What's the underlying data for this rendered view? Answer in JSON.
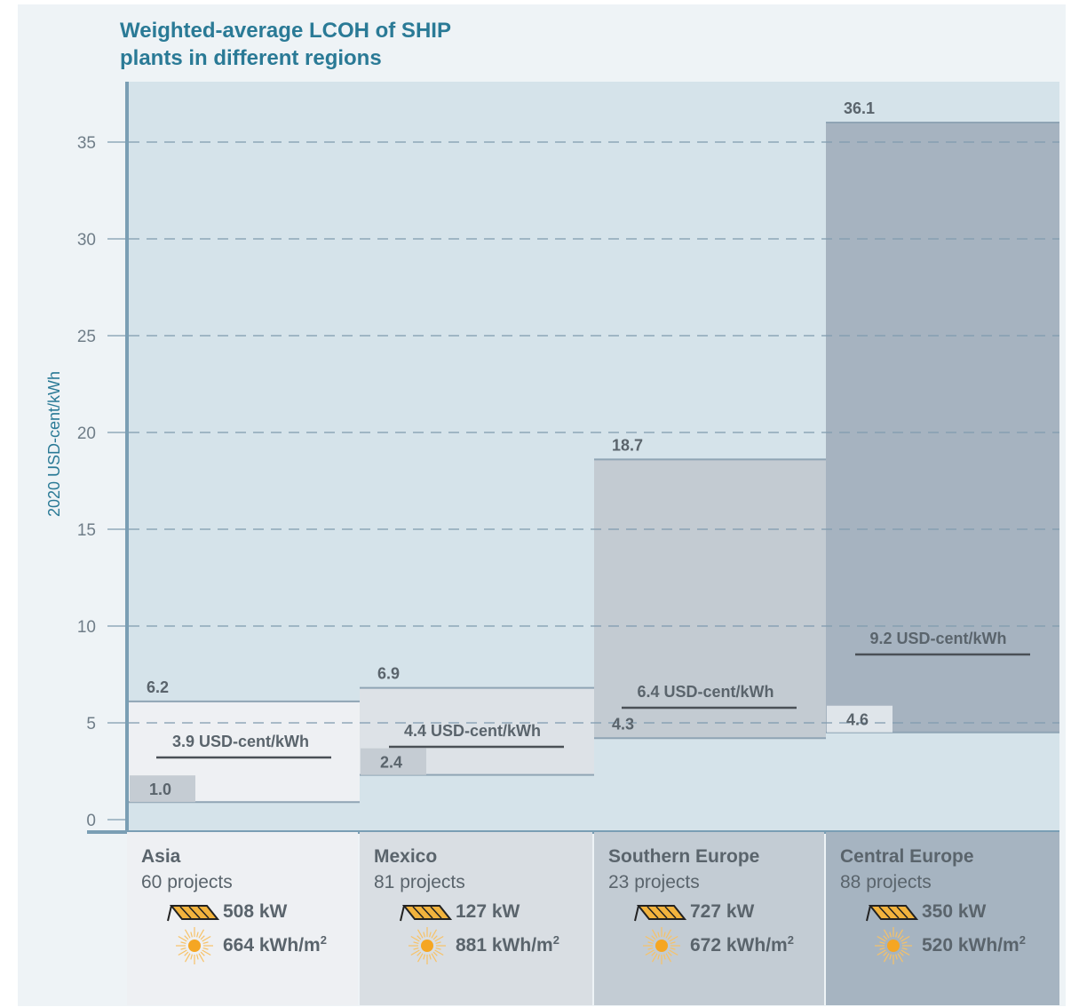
{
  "title_line1": "Weighted-average LCOH of SHIP",
  "title_line2": "plants in different regions",
  "colors": {
    "background": "#eef3f6",
    "plot_area": "#d5e3ea",
    "axis": "#7a9eb4",
    "title": "#2a7a96",
    "label": "#5a646c",
    "sun": "#f5a623",
    "collector": "#f2b33d"
  },
  "chart_data": {
    "type": "bar",
    "subtype": "range-bar (min to max, with weighted average line)",
    "ylabel": "2020 USD-cent/kWh",
    "ylim": [
      0,
      37
    ],
    "yticks": [
      0,
      5,
      10,
      15,
      20,
      25,
      30,
      35
    ],
    "grid": true,
    "categories": [
      "Asia",
      "Mexico",
      "Southern Europe",
      "Central Europe"
    ],
    "series": [
      {
        "values": [
          1.0,
          2.4,
          4.3,
          4.6
        ]
      },
      {
        "values": [
          6.2,
          6.9,
          18.7,
          36.1
        ]
      },
      {
        "values": [
          3.9,
          4.4,
          6.4,
          9.2
        ]
      }
    ],
    "min_labels": [
      "1.0",
      "2.4",
      "4.3",
      "4.6"
    ],
    "max_labels": [
      "6.2",
      "6.9",
      "18.7",
      "36.1"
    ],
    "avg_labels": [
      "3.9 USD-cent/kWh",
      "4.4 USD-cent/kWh",
      "6.4 USD-cent/kWh",
      "9.2 USD-cent/kWh"
    ]
  },
  "regions": [
    {
      "name": "Asia",
      "projects": "60 projects",
      "capacity": "508 kW",
      "irradiation": "664 kWh/m",
      "irradiation_sup": "2",
      "bar_color": "#eef0f3",
      "panel_color": "#eef0f3"
    },
    {
      "name": "Mexico",
      "projects": "81 projects",
      "capacity": "127 kW",
      "irradiation": "881 kWh/m",
      "irradiation_sup": "2",
      "bar_color": "#dde2e7",
      "panel_color": "#d9dee3"
    },
    {
      "name": "Southern Europe",
      "projects": "23 projects",
      "capacity": "727 kW",
      "irradiation": "672 kWh/m",
      "irradiation_sup": "2",
      "bar_color": "#c3cbd2",
      "panel_color": "#c3ccd4"
    },
    {
      "name": "Central Europe",
      "projects": "88 projects",
      "capacity": "350 kW",
      "irradiation": "520 kWh/m",
      "irradiation_sup": "2",
      "bar_color": "#a6b3c0",
      "panel_color": "#a6b4c1"
    }
  ]
}
